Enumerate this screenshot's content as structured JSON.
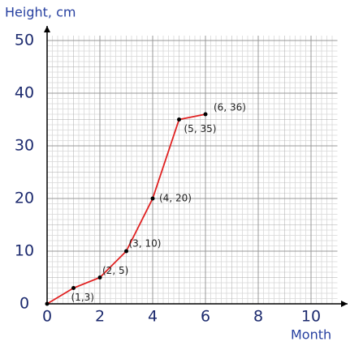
{
  "chart_data": {
    "type": "line",
    "y_label": "Height, cm",
    "x_label": "Month",
    "x": [
      0,
      1,
      2,
      3,
      4,
      5,
      6
    ],
    "series": [
      {
        "color": "#e02020",
        "values": [
          0,
          3,
          5,
          10,
          20,
          35,
          36
        ],
        "value_labels": [
          null,
          "(1,3)",
          "(2, 5)",
          "(3, 10)",
          "(4, 20)",
          "(5, 35)",
          "(6, 36)"
        ]
      }
    ],
    "xlim": [
      0,
      11
    ],
    "ylim": [
      0,
      50
    ],
    "xticks": [
      0,
      2,
      4,
      6,
      8,
      10
    ],
    "yticks": [
      0,
      10,
      20,
      30,
      40,
      50
    ],
    "grid": true
  }
}
